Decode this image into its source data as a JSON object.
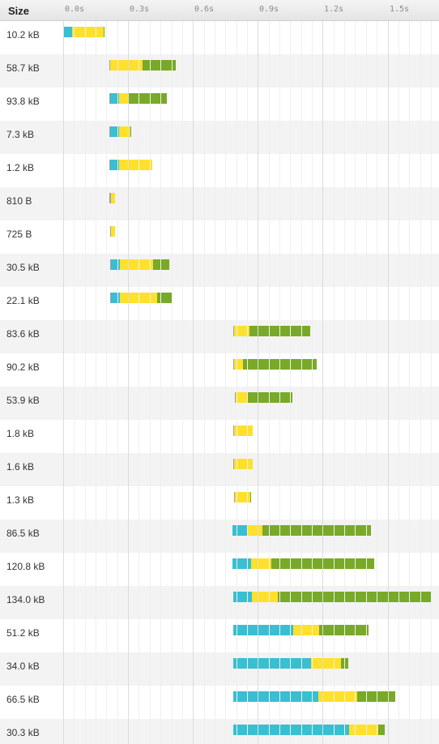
{
  "header": {
    "size_label": "Size",
    "ticks": [
      "0.0s",
      "0.3s",
      "0.6s",
      "0.9s",
      "1.2s",
      "1.5s"
    ]
  },
  "timeline": {
    "unit": "s",
    "tick_values": [
      0.0,
      0.3,
      0.6,
      0.9,
      1.2,
      1.5
    ]
  },
  "colors": {
    "blocked": "#9aa3a8",
    "waiting": "#38bfd1",
    "first_byte": "#ffe12b",
    "receiving": "#79a928"
  },
  "requests": [
    {
      "size": "10.2 kB",
      "start": 0.0,
      "blocked": 0.0,
      "waiting": 0.042,
      "first_byte": 0.145,
      "receiving": 0.004
    },
    {
      "size": "58.7 kB",
      "start": 0.214,
      "blocked": 0.004,
      "waiting": 0.0,
      "first_byte": 0.148,
      "receiving": 0.154
    },
    {
      "size": "93.8 kB",
      "start": 0.214,
      "blocked": 0.004,
      "waiting": 0.042,
      "first_byte": 0.042,
      "receiving": 0.176
    },
    {
      "size": "7.3 kB",
      "start": 0.214,
      "blocked": 0.004,
      "waiting": 0.042,
      "first_byte": 0.052,
      "receiving": 0.004
    },
    {
      "size": "1.2 kB",
      "start": 0.214,
      "blocked": 0.004,
      "waiting": 0.042,
      "first_byte": 0.152,
      "receiving": 0.0
    },
    {
      "size": "810 B",
      "start": 0.214,
      "blocked": 0.008,
      "waiting": 0.0,
      "first_byte": 0.019,
      "receiving": 0.0
    },
    {
      "size": "725 B",
      "start": 0.218,
      "blocked": 0.004,
      "waiting": 0.0,
      "first_byte": 0.019,
      "receiving": 0.0
    },
    {
      "size": "30.5 kB",
      "start": 0.218,
      "blocked": 0.004,
      "waiting": 0.042,
      "first_byte": 0.152,
      "receiving": 0.076
    },
    {
      "size": "22.1 kB",
      "start": 0.218,
      "blocked": 0.004,
      "waiting": 0.042,
      "first_byte": 0.17,
      "receiving": 0.072
    },
    {
      "size": "83.6 kB",
      "start": 0.786,
      "blocked": 0.004,
      "waiting": 0.0,
      "first_byte": 0.072,
      "receiving": 0.282
    },
    {
      "size": "90.2 kB",
      "start": 0.786,
      "blocked": 0.004,
      "waiting": 0.0,
      "first_byte": 0.042,
      "receiving": 0.34
    },
    {
      "size": "53.9 kB",
      "start": 0.793,
      "blocked": 0.004,
      "waiting": 0.0,
      "first_byte": 0.057,
      "receiving": 0.205
    },
    {
      "size": "1.8 kB",
      "start": 0.786,
      "blocked": 0.004,
      "waiting": 0.0,
      "first_byte": 0.087,
      "receiving": 0.0
    },
    {
      "size": "1.6 kB",
      "start": 0.786,
      "blocked": 0.004,
      "waiting": 0.0,
      "first_byte": 0.087,
      "receiving": 0.0
    },
    {
      "size": "1.3 kB",
      "start": 0.789,
      "blocked": 0.004,
      "waiting": 0.0,
      "first_byte": 0.072,
      "receiving": 0.004
    },
    {
      "size": "86.5 kB",
      "start": 0.782,
      "blocked": 0.0,
      "waiting": 0.068,
      "first_byte": 0.072,
      "receiving": 0.501
    },
    {
      "size": "120.8 kB",
      "start": 0.782,
      "blocked": 0.0,
      "waiting": 0.087,
      "first_byte": 0.095,
      "receiving": 0.475
    },
    {
      "size": "134.0 kB",
      "start": 0.786,
      "blocked": 0.0,
      "waiting": 0.087,
      "first_byte": 0.121,
      "receiving": 0.71
    },
    {
      "size": "51.2 kB",
      "start": 0.786,
      "blocked": 0.0,
      "waiting": 0.277,
      "first_byte": 0.121,
      "receiving": 0.228
    },
    {
      "size": "34.0 kB",
      "start": 0.786,
      "blocked": 0.0,
      "waiting": 0.359,
      "first_byte": 0.14,
      "receiving": 0.034
    },
    {
      "size": "66.5 kB",
      "start": 0.786,
      "blocked": 0.0,
      "waiting": 0.394,
      "first_byte": 0.178,
      "receiving": 0.178
    },
    {
      "size": "30.3 kB",
      "start": 0.786,
      "blocked": 0.0,
      "waiting": 0.537,
      "first_byte": 0.133,
      "receiving": 0.03
    }
  ]
}
